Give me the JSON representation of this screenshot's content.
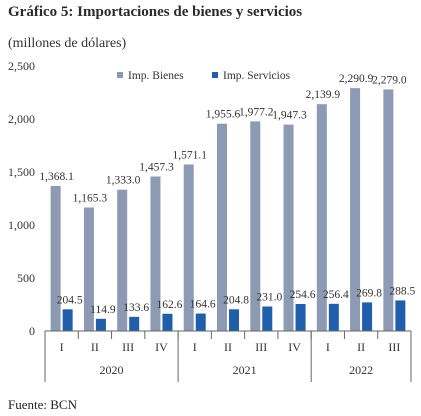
{
  "header": {
    "title": "Gráfico 5: Importaciones de bienes y servicios",
    "unit": "(millones de dólares)"
  },
  "footer": {
    "source": "Fuente: BCN"
  },
  "colors": {
    "bienes": "#8c9bb3",
    "servicios": "#1f5eab",
    "axis": "#666666"
  },
  "chart_data": {
    "type": "bar",
    "title": "Gráfico 5: Importaciones de bienes y servicios",
    "ylabel": "(millones de dólares)",
    "xlabel": "",
    "categories": [
      "I",
      "II",
      "III",
      "IV",
      "I",
      "II",
      "III",
      "IV",
      "I",
      "II",
      "III"
    ],
    "groups": [
      {
        "label": "2020",
        "count": 4
      },
      {
        "label": "2021",
        "count": 4
      },
      {
        "label": "2022",
        "count": 3
      }
    ],
    "series": [
      {
        "name": "Imp. Bienes",
        "values": [
          1368.1,
          1165.3,
          1333.0,
          1457.3,
          1571.1,
          1955.6,
          1977.2,
          1947.3,
          2139.9,
          2290.9,
          2279.0
        ],
        "labels": [
          "1,368.1",
          "1,165.3",
          "1,333.0",
          "1,457.3",
          "1,571.1",
          "1,955.6",
          "1,977.2",
          "1,947.3",
          "2,139.9",
          "2,290.9",
          "2,279.0"
        ]
      },
      {
        "name": "Imp. Servicios",
        "values": [
          204.5,
          114.9,
          133.6,
          162.6,
          164.6,
          204.8,
          231.0,
          254.6,
          256.4,
          269.8,
          288.5
        ],
        "labels": [
          "204.5",
          "114.9",
          "133.6",
          "162.6",
          "164.6",
          "204.8",
          "231.0",
          "254.6",
          "256.4",
          "269.8",
          "288.5"
        ]
      }
    ],
    "ylim": [
      0,
      2500
    ],
    "yticks": [
      0,
      500,
      1000,
      1500,
      2000,
      2500
    ],
    "ytick_labels": [
      "0",
      "500",
      "1,000",
      "1,500",
      "2,000",
      "2,500"
    ],
    "grid": false,
    "legend": "top"
  }
}
